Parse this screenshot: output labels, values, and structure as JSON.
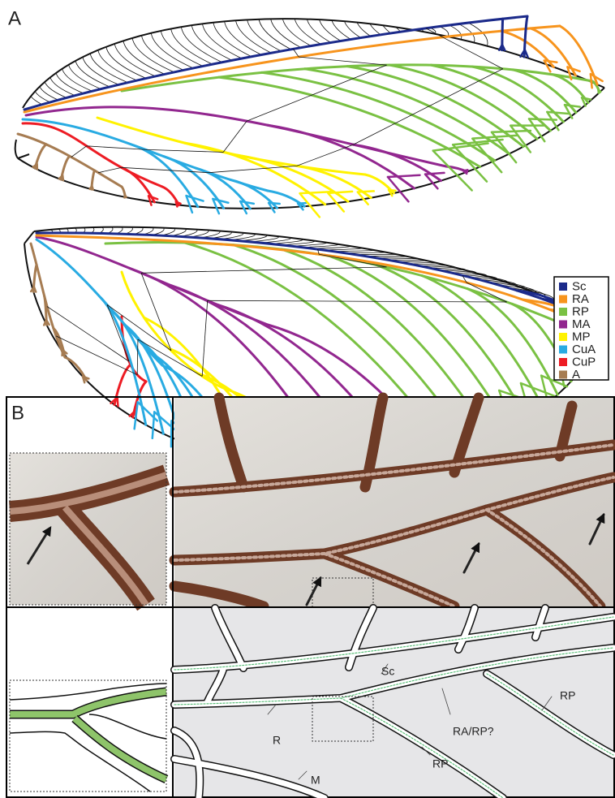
{
  "panel_labels": [
    "A",
    "B"
  ],
  "legend": [
    {
      "name": "Sc",
      "color": "#1b2a8a"
    },
    {
      "name": "RA",
      "color": "#f7941d"
    },
    {
      "name": "RP",
      "color": "#7ac143"
    },
    {
      "name": "MA",
      "color": "#92278f"
    },
    {
      "name": "MP",
      "color": "#fff200"
    },
    {
      "name": "CuA",
      "color": "#29abe2"
    },
    {
      "name": "CuP",
      "color": "#ed1c24"
    },
    {
      "name": "A",
      "color": "#a67c52"
    }
  ],
  "labels": [
    "Sc",
    "R",
    "RA/RP?",
    "RP",
    "RP",
    "M"
  ]
}
